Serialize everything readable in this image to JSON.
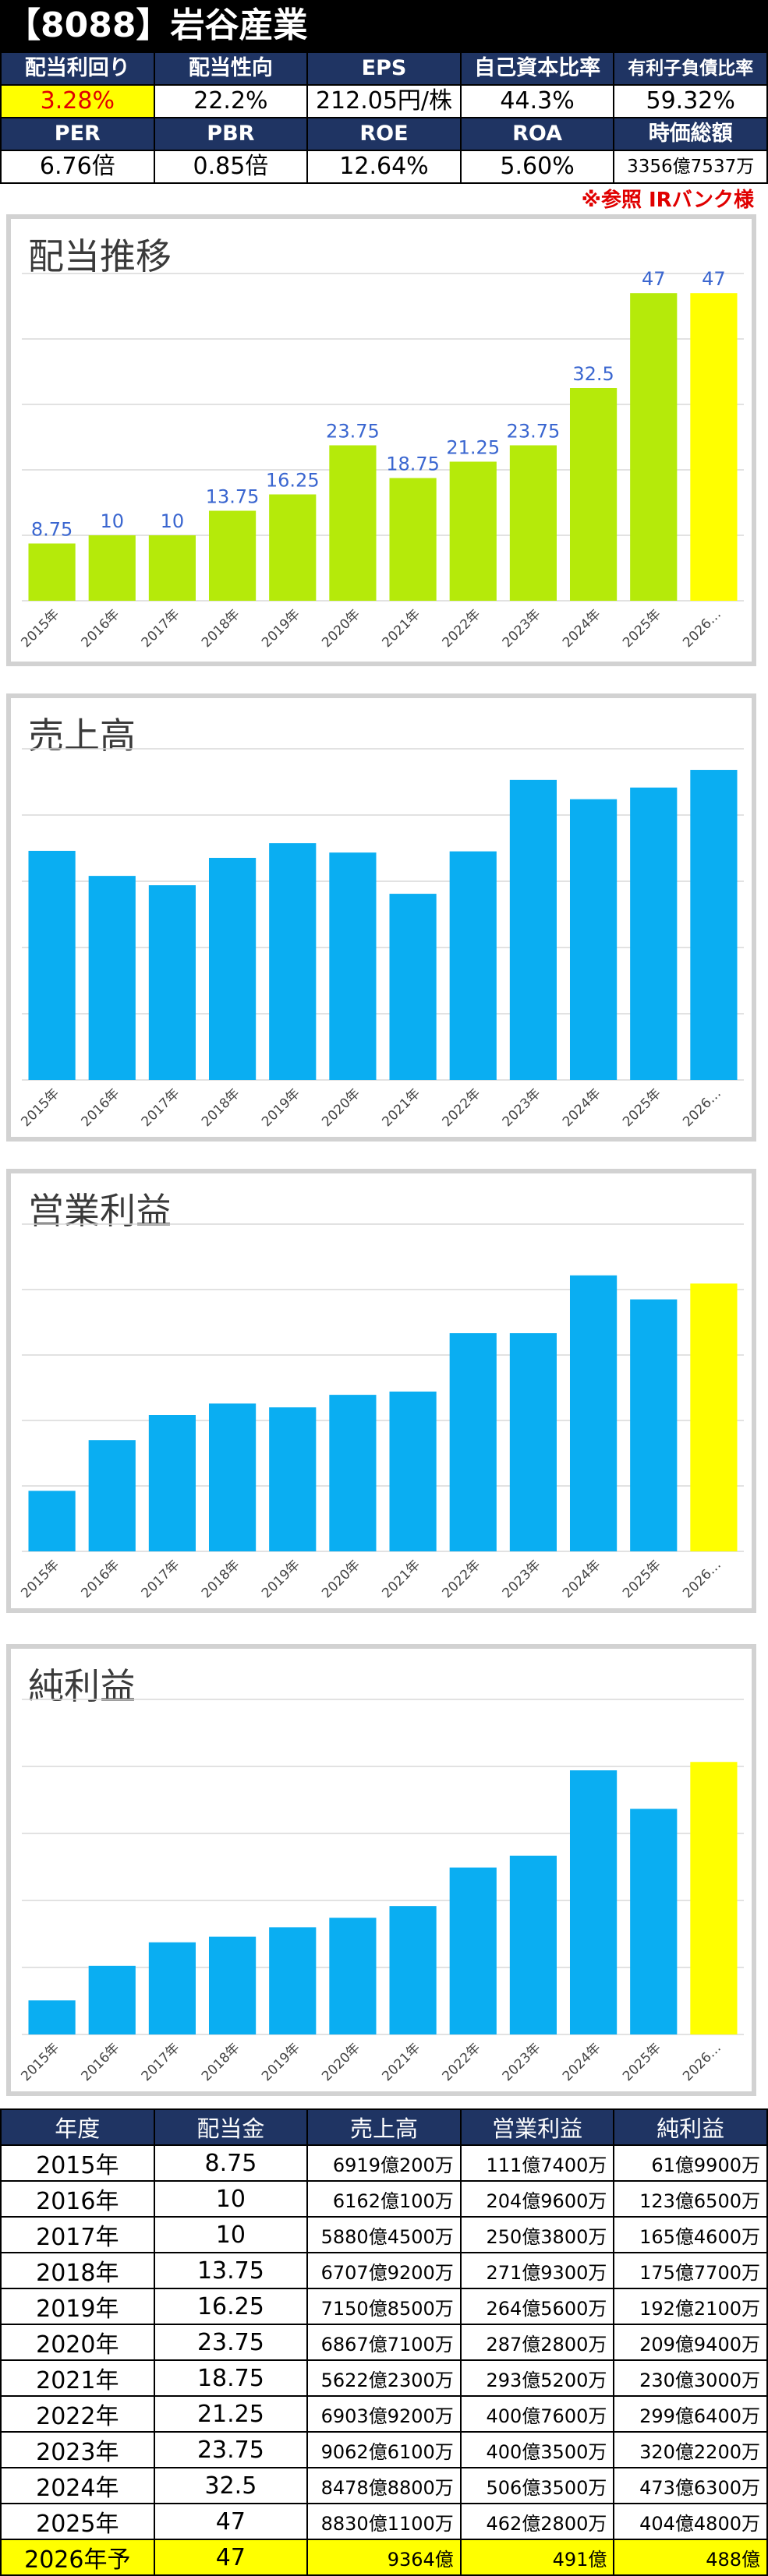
{
  "header": {
    "title": "【8088】岩谷産業"
  },
  "metrics": {
    "row1_labels": [
      "配当利回り",
      "配当性向",
      "EPS",
      "自己資本比率",
      "有利子負債比率"
    ],
    "row1_values": [
      "3.28%",
      "22.2%",
      "212.05円/株",
      "44.3%",
      "59.32%"
    ],
    "row2_labels": [
      "PER",
      "PBR",
      "ROE",
      "ROA",
      "時価総額"
    ],
    "row2_values": [
      "6.76倍",
      "0.85倍",
      "12.64%",
      "5.60%",
      "3356億7537万"
    ]
  },
  "source_note": "※参照  IRバンク様",
  "colors": {
    "dividend_bar": "#b5ea0a",
    "bar": "#0aaef2",
    "forecast_bar": "#ffff00",
    "header_bg": "#1f3463",
    "label": "#3a66d0"
  },
  "chart_data": [
    {
      "type": "bar",
      "title": "配当推移",
      "categories": [
        "2015年",
        "2016年",
        "2017年",
        "2018年",
        "2019年",
        "2020年",
        "2021年",
        "2022年",
        "2023年",
        "2024年",
        "2025年",
        "2026…"
      ],
      "values": [
        8.75,
        10,
        10,
        13.75,
        16.25,
        23.75,
        18.75,
        21.25,
        23.75,
        32.5,
        47,
        47
      ],
      "data_labels": [
        "8.75",
        "10",
        "10",
        "13.75",
        "16.25",
        "23.75",
        "18.75",
        "21.25",
        "23.75",
        "32.5",
        "47",
        "47"
      ],
      "highlight_last": true,
      "ylim": [
        0,
        50
      ],
      "grid": true
    },
    {
      "type": "bar",
      "title": "売上高",
      "unit": "億円",
      "categories": [
        "2015年",
        "2016年",
        "2017年",
        "2018年",
        "2019年",
        "2020年",
        "2021年",
        "2022年",
        "2023年",
        "2024年",
        "2025年",
        "2026…"
      ],
      "values": [
        6919,
        6162,
        5880,
        6707,
        7150,
        6867,
        5622,
        6903,
        9062,
        8478,
        8830,
        9364
      ],
      "highlight_last": false,
      "ylim": [
        0,
        10000
      ],
      "grid": true
    },
    {
      "type": "bar",
      "title": "営業利益",
      "unit": "億円",
      "categories": [
        "2015年",
        "2016年",
        "2017年",
        "2018年",
        "2019年",
        "2020年",
        "2021年",
        "2022年",
        "2023年",
        "2024年",
        "2025年",
        "2026…"
      ],
      "values": [
        111,
        204,
        250,
        271,
        264,
        287,
        293,
        400,
        400,
        506,
        462,
        491
      ],
      "highlight_last": true,
      "ylim": [
        0,
        600
      ],
      "grid": true
    },
    {
      "type": "bar",
      "title": "純利益",
      "unit": "億円",
      "categories": [
        "2015年",
        "2016年",
        "2017年",
        "2018年",
        "2019年",
        "2020年",
        "2021年",
        "2022年",
        "2023年",
        "2024年",
        "2025年",
        "2026…"
      ],
      "values": [
        61,
        123,
        165,
        175,
        192,
        209,
        230,
        299,
        320,
        473,
        404,
        488
      ],
      "highlight_last": true,
      "ylim": [
        0,
        600
      ],
      "grid": true
    }
  ],
  "table": {
    "headers": [
      "年度",
      "配当金",
      "売上高",
      "営業利益",
      "純利益"
    ],
    "rows": [
      [
        "2015年",
        "8.75",
        "6919億200万",
        "111億7400万",
        "61億9900万"
      ],
      [
        "2016年",
        "10",
        "6162億100万",
        "204億9600万",
        "123億6500万"
      ],
      [
        "2017年",
        "10",
        "5880億4500万",
        "250億3800万",
        "165億4600万"
      ],
      [
        "2018年",
        "13.75",
        "6707億9200万",
        "271億9300万",
        "175億7700万"
      ],
      [
        "2019年",
        "16.25",
        "7150億8500万",
        "264億5600万",
        "192億2100万"
      ],
      [
        "2020年",
        "23.75",
        "6867億7100万",
        "287億2800万",
        "209億9400万"
      ],
      [
        "2021年",
        "18.75",
        "5622億2300万",
        "293億5200万",
        "230億3000万"
      ],
      [
        "2022年",
        "21.25",
        "6903億9200万",
        "400億7600万",
        "299億6400万"
      ],
      [
        "2023年",
        "23.75",
        "9062億6100万",
        "400億3500万",
        "320億2200万"
      ],
      [
        "2024年",
        "32.5",
        "8478億8800万",
        "506億3500万",
        "473億6300万"
      ],
      [
        "2025年",
        "47",
        "8830億1100万",
        "462億2800万",
        "404億4800万"
      ],
      [
        "2026年予",
        "47",
        "9364億",
        "491億",
        "488億"
      ]
    ]
  }
}
